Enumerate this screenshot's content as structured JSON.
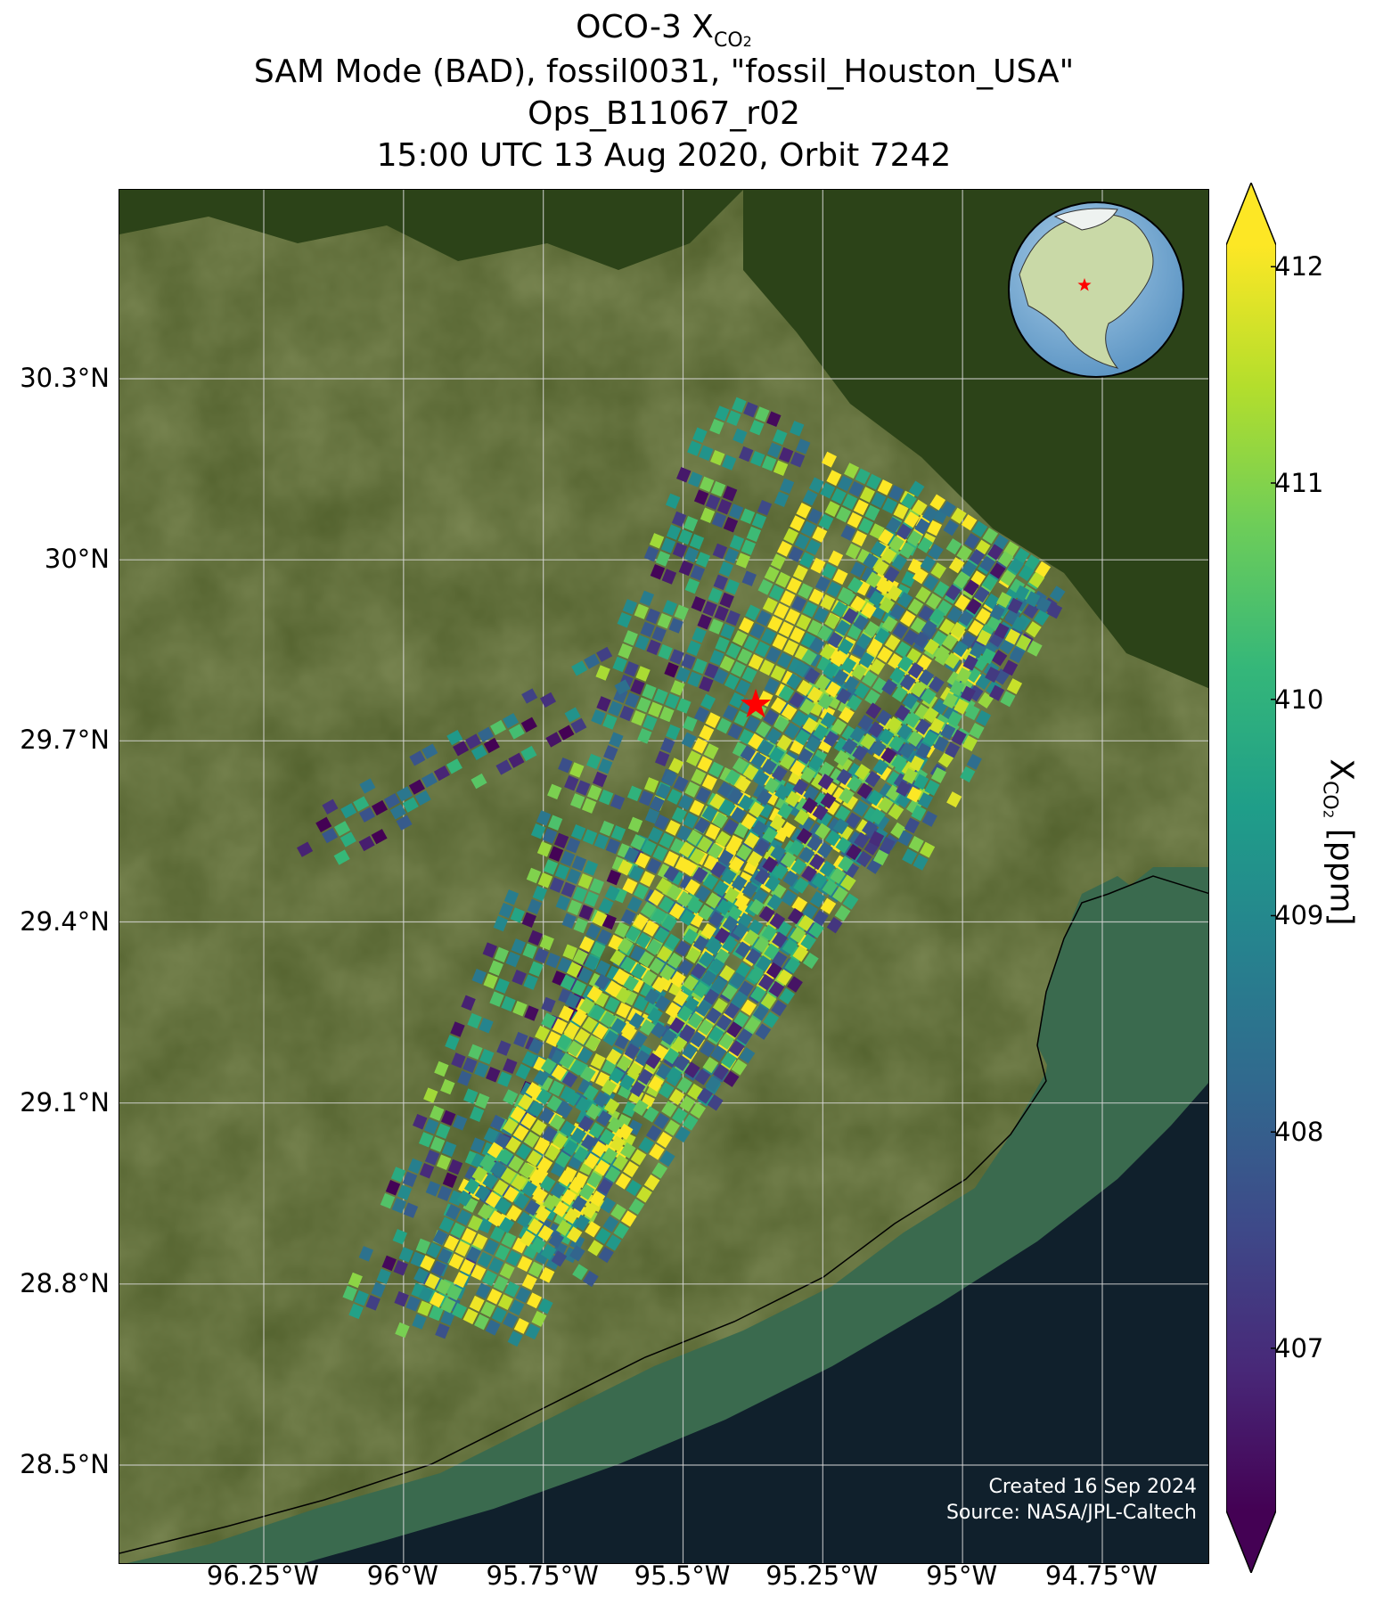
{
  "title": {
    "line1_main": "OCO-3 X",
    "line1_sub": "CO",
    "line1_sub2": "2",
    "line2": "SAM Mode (BAD), fossil0031, \"fossil_Houston_USA\"",
    "line3": "Ops_B11067_r02",
    "line4": "15:00 UTC 13 Aug 2020, Orbit 7242"
  },
  "axes": {
    "y_ticks": [
      "30.3°N",
      "30°N",
      "29.7°N",
      "29.4°N",
      "29.1°N",
      "28.8°N",
      "28.5°N"
    ],
    "y_values": [
      30.3,
      30.0,
      29.7,
      29.4,
      29.1,
      28.8,
      28.5
    ],
    "x_ticks": [
      "96.25°W",
      "96°W",
      "95.75°W",
      "95.5°W",
      "95.25°W",
      "95°W",
      "94.75°W"
    ],
    "x_values": [
      -96.25,
      -96.0,
      -95.75,
      -95.5,
      -95.25,
      -95.0,
      -94.75
    ],
    "lon_range": [
      -96.75,
      -94.75
    ],
    "lat_range": [
      28.4,
      30.6
    ],
    "grid": true
  },
  "colorbar": {
    "ticks": [
      "412",
      "411",
      "410",
      "409",
      "408",
      "407"
    ],
    "tick_values": [
      412,
      411,
      410,
      409,
      408,
      407
    ],
    "range": [
      406.25,
      412.1
    ],
    "label_main": "X",
    "label_sub": "CO",
    "label_sub2": "2",
    "label_unit": " [ppm]",
    "colormap": "viridis",
    "extend": "both"
  },
  "target": {
    "marker": "red-star",
    "lon": -95.37,
    "lat": 29.76,
    "color": "#ff0000"
  },
  "inset_globe": {
    "marker": "red-star",
    "ocean_color": "#7aaed6",
    "land_color": "#c9d9a7"
  },
  "credits": {
    "line1": "Created 16 Sep 2024",
    "line2": "Source: NASA/JPL-Caltech"
  },
  "colors": {
    "land": "#4f5e2a",
    "forest": "#2c4318",
    "sea": "#10202c",
    "coast_shelf": "#3a6a4e",
    "grid": "#d8d8d8"
  }
}
